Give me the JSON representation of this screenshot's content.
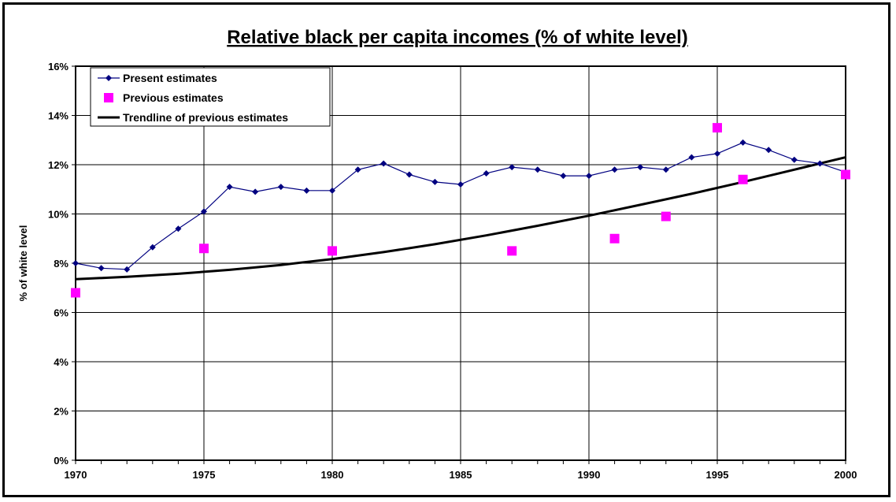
{
  "chart_data": {
    "type": "line",
    "title": "Relative black per capita incomes (% of white level)",
    "xlabel": "",
    "ylabel": "% of white level",
    "xlim": [
      1970,
      2000
    ],
    "ylim": [
      0,
      16
    ],
    "x_ticks": [
      1970,
      1975,
      1980,
      1985,
      1990,
      1995,
      2000
    ],
    "y_ticks": [
      0,
      2,
      4,
      6,
      8,
      10,
      12,
      14,
      16
    ],
    "y_tick_labels": [
      "0%",
      "2%",
      "4%",
      "6%",
      "8%",
      "10%",
      "12%",
      "14%",
      "16%"
    ],
    "grid": true,
    "legend_position": "top-left",
    "series": [
      {
        "name": "Present estimates",
        "style": "line-diamond",
        "color": "#000080",
        "x": [
          1970,
          1971,
          1972,
          1973,
          1974,
          1975,
          1976,
          1977,
          1978,
          1979,
          1980,
          1981,
          1982,
          1983,
          1984,
          1985,
          1986,
          1987,
          1988,
          1989,
          1990,
          1991,
          1992,
          1993,
          1994,
          1995,
          1996,
          1997,
          1998,
          1999,
          2000
        ],
        "y": [
          8.0,
          7.8,
          7.75,
          8.65,
          9.4,
          10.1,
          11.1,
          10.9,
          11.1,
          10.95,
          10.95,
          11.8,
          12.05,
          11.6,
          11.3,
          11.2,
          11.65,
          11.9,
          11.8,
          11.55,
          11.55,
          11.8,
          11.9,
          11.8,
          12.3,
          12.45,
          12.9,
          12.6,
          12.2,
          12.05,
          11.7
        ]
      },
      {
        "name": "Previous estimates",
        "style": "square-marker",
        "color": "#ff00ff",
        "x": [
          1970,
          1975,
          1980,
          1987,
          1991,
          1993,
          1995,
          1996,
          2000
        ],
        "y": [
          6.8,
          8.6,
          8.5,
          8.5,
          9.0,
          9.9,
          13.5,
          11.4,
          11.6
        ]
      },
      {
        "name": "Trendline of previous estimates",
        "style": "line",
        "color": "#000000",
        "x": [
          1970,
          1972,
          1974,
          1976,
          1978,
          1980,
          1982,
          1984,
          1986,
          1988,
          1990,
          1992,
          1994,
          1996,
          1998,
          2000
        ],
        "y": [
          7.35,
          7.45,
          7.57,
          7.73,
          7.93,
          8.17,
          8.45,
          8.77,
          9.13,
          9.52,
          9.93,
          10.37,
          10.82,
          11.3,
          11.8,
          12.3
        ]
      }
    ]
  }
}
